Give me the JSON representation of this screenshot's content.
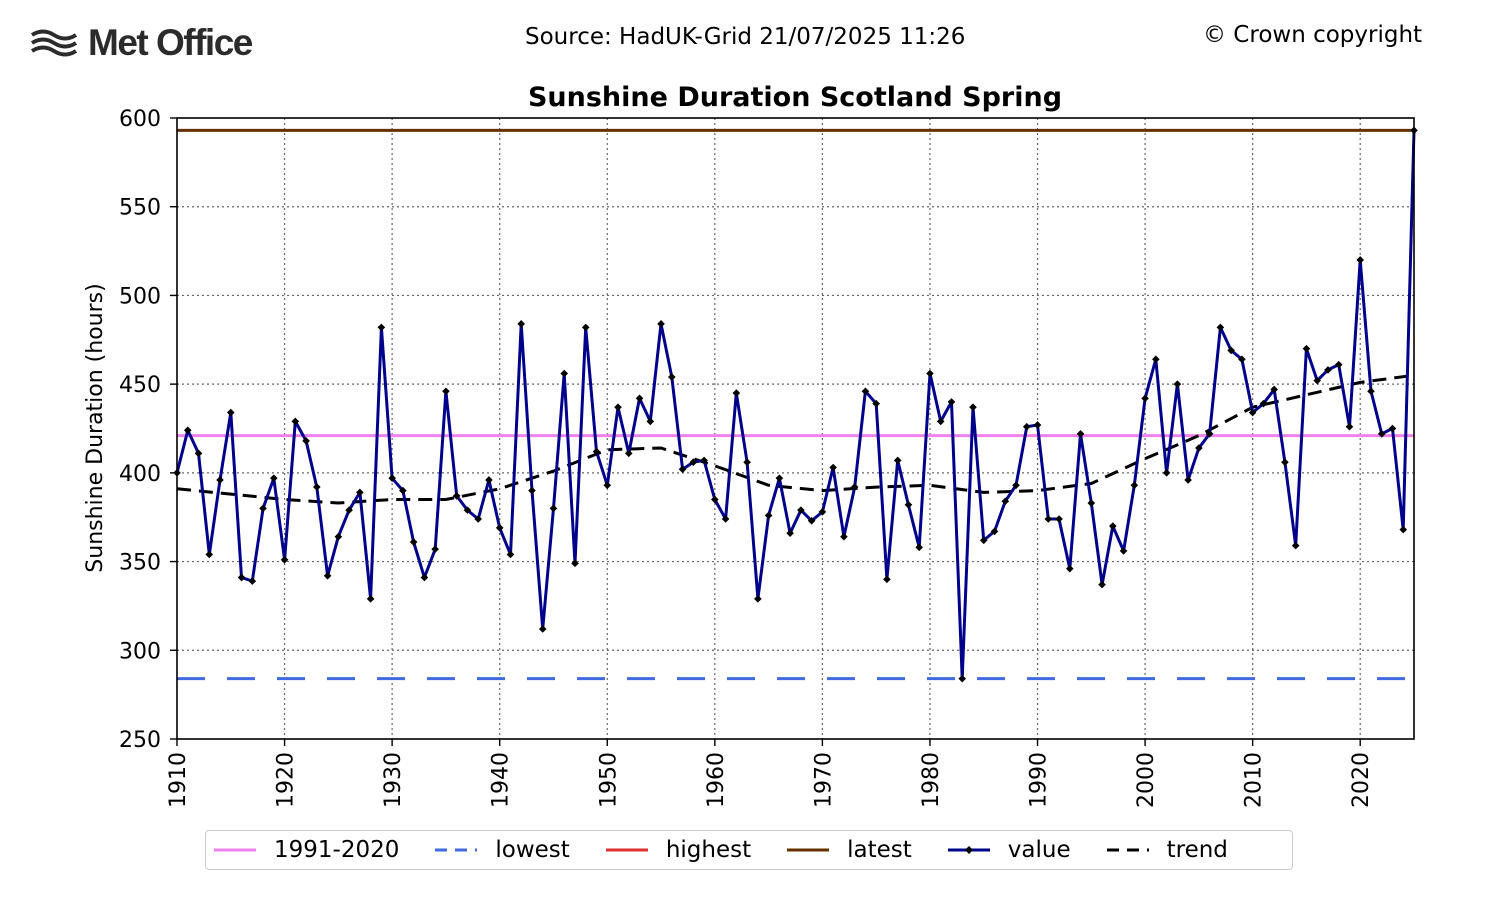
{
  "header": {
    "logo_text": "Met Office",
    "source": "Source: HadUK-Grid 21/07/2025 11:26",
    "copyright": "© Crown copyright"
  },
  "colors": {
    "baseline": "#ee82ee",
    "lowest": "#4169e1",
    "highest": "#e03030",
    "latest": "#663300",
    "value": "#00008b",
    "trend": "#000000",
    "grid": "#666666"
  },
  "chart_data": {
    "type": "line",
    "title": "Sunshine Duration Scotland Spring",
    "xlabel": "",
    "ylabel": "Sunshine Duration (hours)",
    "xlim": [
      1910,
      2025
    ],
    "ylim": [
      250,
      600
    ],
    "xticks": [
      1910,
      1920,
      1930,
      1940,
      1950,
      1960,
      1970,
      1980,
      1990,
      2000,
      2010,
      2020
    ],
    "yticks": [
      250,
      300,
      350,
      400,
      450,
      500,
      550,
      600
    ],
    "grid": true,
    "reference_lines": {
      "baseline_1991_2020": 421,
      "lowest": 284,
      "latest": 593
    },
    "series": [
      {
        "name": "value",
        "x_start": 1910,
        "values": [
          400,
          424,
          411,
          354,
          396,
          434,
          341,
          339,
          380,
          397,
          351,
          429,
          418,
          392,
          342,
          364,
          379,
          389,
          329,
          482,
          397,
          390,
          361,
          341,
          357,
          446,
          387,
          379,
          374,
          396,
          369,
          354,
          484,
          390,
          312,
          380,
          456,
          349,
          482,
          412,
          393,
          437,
          411,
          442,
          429,
          484,
          454,
          402,
          406,
          407,
          385,
          374,
          445,
          406,
          329,
          376,
          397,
          366,
          379,
          373,
          378,
          403,
          364,
          392,
          446,
          439,
          340,
          407,
          382,
          358,
          456,
          429,
          440,
          284,
          437,
          362,
          367,
          384,
          393,
          426,
          427,
          374,
          374,
          346,
          422,
          383,
          337,
          370,
          356,
          393,
          442,
          464,
          400,
          450,
          396,
          414,
          422,
          482,
          469,
          464,
          434,
          439,
          447,
          406,
          359,
          470,
          452,
          458,
          461,
          426,
          520,
          446,
          422,
          425,
          368,
          593
        ]
      },
      {
        "name": "trend",
        "x": [
          1910,
          1915,
          1920,
          1925,
          1930,
          1935,
          1940,
          1945,
          1950,
          1955,
          1960,
          1965,
          1970,
          1975,
          1980,
          1985,
          1990,
          1995,
          2000,
          2005,
          2010,
          2015,
          2020,
          2025
        ],
        "values": [
          391,
          388,
          385,
          383,
          385,
          385,
          391,
          401,
          413,
          414,
          404,
          393,
          390,
          392,
          393,
          389,
          390,
          394,
          408,
          421,
          437,
          444,
          451,
          455
        ]
      }
    ],
    "legend": [
      {
        "label": "1991-2020",
        "style": "solid",
        "color_key": "baseline"
      },
      {
        "label": "lowest",
        "style": "dashed",
        "color_key": "lowest"
      },
      {
        "label": "highest",
        "style": "solid",
        "color_key": "highest"
      },
      {
        "label": "latest",
        "style": "solid",
        "color_key": "latest"
      },
      {
        "label": "value",
        "style": "marker",
        "color_key": "value"
      },
      {
        "label": "trend",
        "style": "dashed",
        "color_key": "trend"
      }
    ],
    "legend_position": "bottom-center"
  }
}
